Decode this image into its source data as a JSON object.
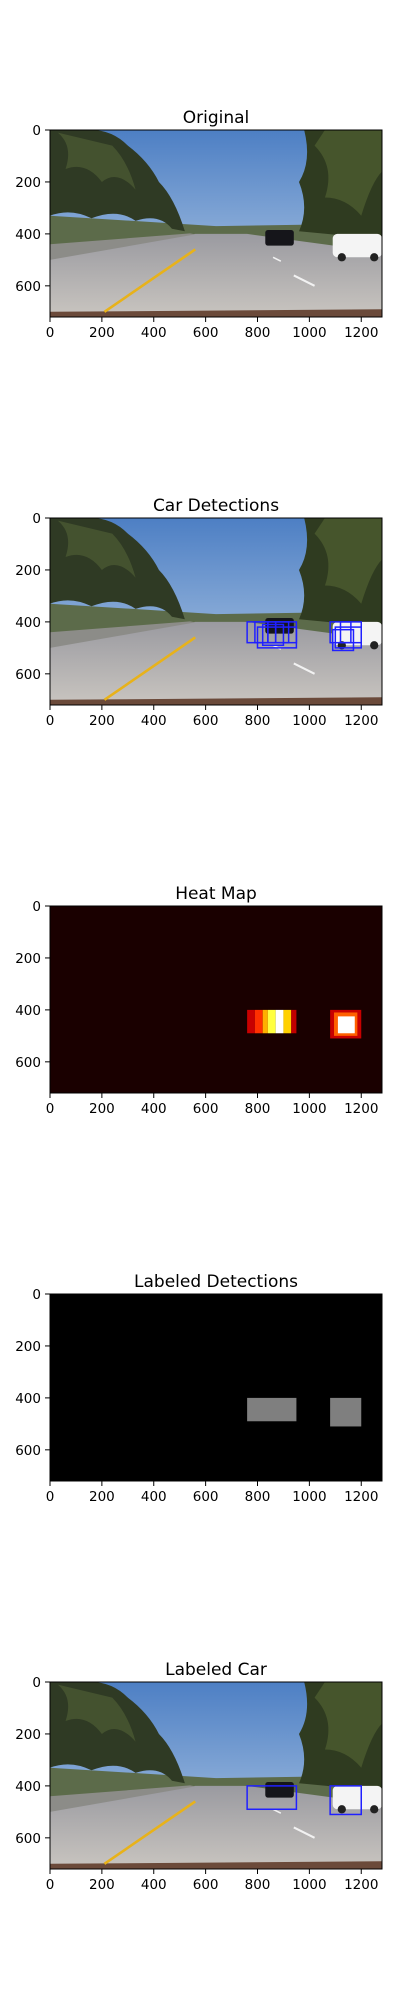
{
  "chart_data": [
    {
      "type": "image",
      "title": "Original",
      "x_ticks": [
        0,
        200,
        400,
        600,
        800,
        1000,
        1200
      ],
      "y_ticks": [
        0,
        200,
        400,
        600
      ],
      "xlim": [
        0,
        1280
      ],
      "ylim": [
        720,
        0
      ],
      "content": "road-scene",
      "boxes": []
    },
    {
      "type": "image",
      "title": "Car Detections",
      "x_ticks": [
        0,
        200,
        400,
        600,
        800,
        1000,
        1200
      ],
      "y_ticks": [
        0,
        200,
        400,
        600
      ],
      "xlim": [
        0,
        1280
      ],
      "ylim": [
        720,
        0
      ],
      "content": "road-scene",
      "box_color": "#2020ff",
      "boxes": [
        [
          760,
          400,
          840,
          480
        ],
        [
          790,
          400,
          870,
          480
        ],
        [
          820,
          410,
          900,
          490
        ],
        [
          840,
          400,
          920,
          480
        ],
        [
          870,
          400,
          950,
          480
        ],
        [
          800,
          420,
          950,
          500
        ],
        [
          1080,
          400,
          1160,
          480
        ],
        [
          1100,
          420,
          1200,
          500
        ],
        [
          1090,
          430,
          1170,
          510
        ],
        [
          1120,
          400,
          1200,
          480
        ]
      ]
    },
    {
      "type": "heatmap",
      "title": "Heat Map",
      "x_ticks": [
        0,
        200,
        400,
        600,
        800,
        1000,
        1200
      ],
      "y_ticks": [
        0,
        200,
        400,
        600
      ],
      "xlim": [
        0,
        1280
      ],
      "ylim": [
        720,
        0
      ],
      "background": "#1a0000",
      "cells": [
        {
          "x0": 760,
          "x1": 790,
          "y0": 400,
          "y1": 490,
          "color": "#c80000"
        },
        {
          "x0": 790,
          "x1": 820,
          "y0": 400,
          "y1": 490,
          "color": "#ff3000"
        },
        {
          "x0": 820,
          "x1": 840,
          "y0": 400,
          "y1": 490,
          "color": "#ffb000"
        },
        {
          "x0": 840,
          "x1": 870,
          "y0": 400,
          "y1": 490,
          "color": "#ffff40"
        },
        {
          "x0": 870,
          "x1": 900,
          "y0": 400,
          "y1": 490,
          "color": "#ffffff"
        },
        {
          "x0": 900,
          "x1": 930,
          "y0": 400,
          "y1": 490,
          "color": "#ffd000"
        },
        {
          "x0": 930,
          "x1": 950,
          "y0": 400,
          "y1": 490,
          "color": "#c00000"
        },
        {
          "x0": 1080,
          "x1": 1200,
          "y0": 400,
          "y1": 510,
          "color": "#c80000"
        },
        {
          "x0": 1095,
          "x1": 1185,
          "y0": 410,
          "y1": 500,
          "color": "#ff6000"
        },
        {
          "x0": 1110,
          "x1": 1175,
          "y0": 425,
          "y1": 490,
          "color": "#ffffff"
        }
      ]
    },
    {
      "type": "heatmap",
      "title": "Labeled Detections",
      "x_ticks": [
        0,
        200,
        400,
        600,
        800,
        1000,
        1200
      ],
      "y_ticks": [
        0,
        200,
        400,
        600
      ],
      "xlim": [
        0,
        1280
      ],
      "ylim": [
        720,
        0
      ],
      "background": "#000000",
      "cells": [
        {
          "x0": 760,
          "x1": 950,
          "y0": 400,
          "y1": 490,
          "color": "#7f7f7f"
        },
        {
          "x0": 1080,
          "x1": 1200,
          "y0": 400,
          "y1": 510,
          "color": "#7f7f7f"
        }
      ]
    },
    {
      "type": "image",
      "title": "Labeled Car",
      "x_ticks": [
        0,
        200,
        400,
        600,
        800,
        1000,
        1200
      ],
      "y_ticks": [
        0,
        200,
        400,
        600
      ],
      "xlim": [
        0,
        1280
      ],
      "ylim": [
        720,
        0
      ],
      "content": "road-scene",
      "box_color": "#2020ff",
      "boxes": [
        [
          760,
          400,
          950,
          490
        ],
        [
          1080,
          400,
          1200,
          510
        ]
      ]
    }
  ]
}
